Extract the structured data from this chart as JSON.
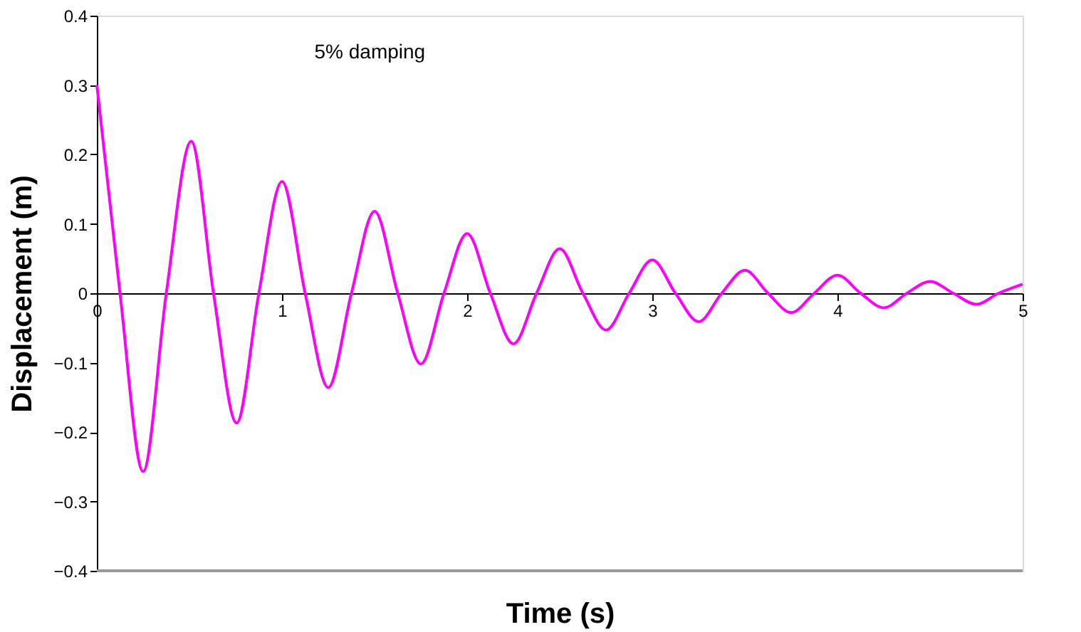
{
  "chart_data": {
    "type": "line",
    "xlabel": "Time (s)",
    "ylabel": "Displacement (m)",
    "annotations": [
      "5% damping"
    ],
    "x": [
      0,
      0.125,
      0.25,
      0.375,
      0.51,
      0.63,
      0.755,
      0.875,
      1.0,
      1.125,
      1.25,
      1.375,
      1.5,
      1.625,
      1.75,
      1.875,
      2.0,
      2.125,
      2.25,
      2.375,
      2.5,
      2.625,
      2.75,
      2.875,
      3.0,
      3.125,
      3.25,
      3.375,
      3.5,
      3.625,
      3.75,
      3.875,
      4.0,
      4.125,
      4.25,
      4.375,
      4.5,
      4.625,
      4.75,
      4.87,
      5.0
    ],
    "series": [
      {
        "color": "#ff00ff",
        "values": [
          0.3,
          0,
          -0.257,
          0,
          0.219,
          0,
          -0.187,
          0,
          0.161,
          0,
          -0.136,
          0,
          0.118,
          0,
          -0.102,
          0,
          0.086,
          0,
          -0.073,
          0,
          0.064,
          0,
          -0.053,
          0,
          0.048,
          0,
          -0.041,
          0,
          0.033,
          0,
          -0.028,
          0,
          0.026,
          0,
          -0.021,
          0,
          0.017,
          0,
          -0.016,
          0,
          0.013
        ]
      }
    ],
    "xlim": [
      0,
      5
    ],
    "xticks": [
      0,
      1,
      2,
      3,
      4,
      5
    ],
    "ylim": [
      -0.4,
      0.4
    ],
    "yticks": [
      -0.4,
      -0.3,
      -0.2,
      -0.1,
      0,
      0.1,
      0.2,
      0.3,
      0.4
    ],
    "grid": false,
    "marker": "none",
    "line_style": "solid"
  }
}
